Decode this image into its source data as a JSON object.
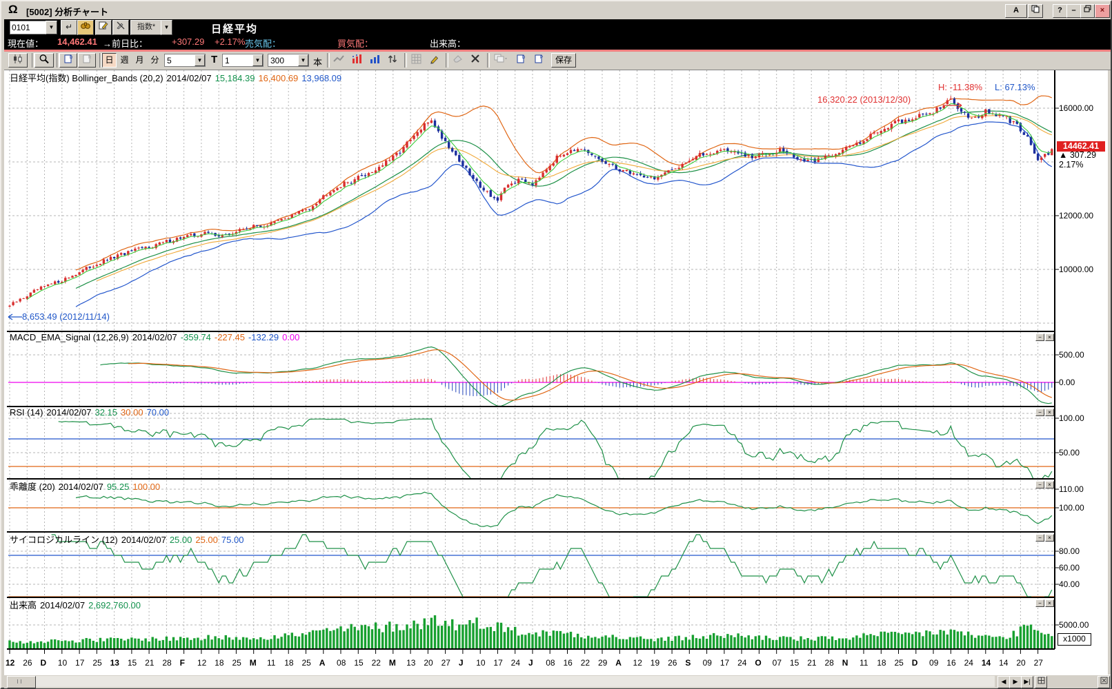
{
  "window": {
    "title": "[5002] 分析チャート",
    "logo": "Ω",
    "buttons": {
      "font": "A",
      "help": "?",
      "minimize": "–",
      "close": "×"
    }
  },
  "quote_bar": {
    "code": "0101",
    "category": "指数*",
    "name": "日経平均"
  },
  "price_bar": {
    "label_current": "現在値：",
    "current": "14,462.41",
    "label_change": "→前日比：",
    "change": "+307.29",
    "change_pct": "+2.17%",
    "label_ask": "売気配：",
    "label_bid": "買気配：",
    "label_volume": "出来高："
  },
  "toolbar": {
    "period_day": "日",
    "period_week": "週",
    "period_month": "月",
    "period_min": "分",
    "dd_min": "5",
    "t_label": "T",
    "dd_t": "1",
    "dd_bars": "300",
    "bars_unit": "本",
    "save": "保存"
  },
  "main_chart": {
    "title": "日経平均(指数) Bollinger_Bands (20,2)",
    "date": "2014/02/07",
    "sma": "15,184.39",
    "upper": "16,400.69",
    "lower": "13,968.09",
    "high_label": "H: -11.38%",
    "low_label": "L: 67.13%",
    "peak_label": "16,320.22 (2013/12/30)",
    "trough_label": "8,653.49 (2012/11/14)",
    "price_tag": "14462.41",
    "price_change": "▲ 307.29",
    "price_pct": "2.17%",
    "axis": [
      "16000.00",
      "12000.00",
      "10000.00"
    ]
  },
  "macd": {
    "title": "MACD_EMA_Signal (12,26,9)",
    "date": "2014/02/07",
    "v1": "-359.74",
    "v2": "-227.45",
    "v3": "-132.29",
    "v4": "0.00",
    "axis": [
      "500.00",
      "0.00"
    ]
  },
  "rsi": {
    "title": "RSI (14)",
    "date": "2014/02/07",
    "v1": "32.15",
    "v2": "30.00",
    "v3": "70.00",
    "axis": [
      "100.00",
      "50.00"
    ]
  },
  "kairi": {
    "title": "乖離度 (20)",
    "date": "2014/02/07",
    "v1": "95.25",
    "v2": "100.00",
    "axis": [
      "110.00",
      "100.00"
    ]
  },
  "psy": {
    "title": "サイコロジカルライン (12)",
    "date": "2014/02/07",
    "v1": "25.00",
    "v2": "25.00",
    "v3": "75.00",
    "axis": [
      "80.00",
      "60.00",
      "40.00"
    ]
  },
  "volume_panel": {
    "title": "出来高",
    "date": "2014/02/07",
    "value": "2,692,760.00",
    "axis": [
      "5000.00"
    ],
    "unit": "x1000"
  },
  "x_axis": {
    "labels": [
      "12",
      "26",
      "D",
      "10",
      "17",
      "25",
      "13",
      "15",
      "21",
      "28",
      "F",
      "12",
      "18",
      "25",
      "M",
      "11",
      "18",
      "25",
      "A",
      "08",
      "15",
      "22",
      "M",
      "13",
      "20",
      "27",
      "J",
      "10",
      "17",
      "24",
      "J",
      "08",
      "16",
      "22",
      "29",
      "A",
      "12",
      "19",
      "26",
      "S",
      "09",
      "17",
      "24",
      "O",
      "07",
      "15",
      "21",
      "28",
      "N",
      "11",
      "18",
      "25",
      "D",
      "09",
      "16",
      "24",
      "14",
      "14",
      "20",
      "27"
    ],
    "bold": [
      0,
      2,
      6,
      10,
      14,
      18,
      22,
      26,
      30,
      35,
      39,
      43,
      48,
      52,
      56
    ]
  },
  "colors": {
    "up_candle": "#d82f2f",
    "down_candle": "#1c2f9e",
    "sma": "#1d9047",
    "ema_fast": "#3bcc3b",
    "ema_mid": "#f0a838",
    "band_upper": "#e06614",
    "band_lower": "#2255cc",
    "zero_line": "#ee00ee",
    "hist_pos": "#e03030",
    "hist_neg": "#2244bb",
    "volume": "#18a030",
    "grid": "#b4b4b4",
    "quote_red": "#ff7878",
    "quote_cyan": "#6cc8ee"
  },
  "chart_data": {
    "type": "candlestick",
    "bars": 300,
    "x_tick_every_bars": 5,
    "main_axis_ticks": [
      16000,
      14000,
      12000,
      10000
    ],
    "macd_axis_ticks": [
      500,
      0
    ],
    "rsi_axis_ticks": [
      100,
      50
    ],
    "rsi_bands": [
      70,
      30
    ],
    "kairi_axis_ticks": [
      110,
      100
    ],
    "psy_axis_ticks": [
      80,
      60,
      40
    ],
    "psy_bands": [
      75,
      25
    ],
    "vol_axis_ticks": [
      5000
    ],
    "overlays": [
      "SMA20",
      "BB_upper_2sigma",
      "BB_lower_2sigma",
      "EMA5",
      "EMA25"
    ],
    "latest": {
      "close": 14462.41,
      "sma20": 15184.39,
      "bb_upper": 16400.69,
      "bb_lower": 13968.09,
      "macd": -359.74,
      "signal": -227.45,
      "histogram": -132.29,
      "rsi": 32.15,
      "kairi": 95.25,
      "psychological": 25.0,
      "volume_x1000": 2692.76
    },
    "price_anchors": [
      [
        0,
        8650
      ],
      [
        8,
        9250
      ],
      [
        16,
        9650
      ],
      [
        24,
        10150
      ],
      [
        32,
        10550
      ],
      [
        40,
        10850
      ],
      [
        48,
        11150
      ],
      [
        56,
        11350
      ],
      [
        62,
        11250
      ],
      [
        68,
        11550
      ],
      [
        74,
        11650
      ],
      [
        80,
        11950
      ],
      [
        86,
        12300
      ],
      [
        92,
        12950
      ],
      [
        98,
        13300
      ],
      [
        104,
        13650
      ],
      [
        110,
        14150
      ],
      [
        115,
        14800
      ],
      [
        119,
        15350
      ],
      [
        121,
        15600
      ],
      [
        123,
        15100
      ],
      [
        126,
        14600
      ],
      [
        129,
        14050
      ],
      [
        133,
        13350
      ],
      [
        136,
        13000
      ],
      [
        140,
        12550
      ],
      [
        143,
        13150
      ],
      [
        147,
        13350
      ],
      [
        150,
        13200
      ],
      [
        154,
        13800
      ],
      [
        158,
        14250
      ],
      [
        161,
        14500
      ],
      [
        165,
        14350
      ],
      [
        169,
        14100
      ],
      [
        173,
        13800
      ],
      [
        177,
        13650
      ],
      [
        181,
        13500
      ],
      [
        185,
        13400
      ],
      [
        189,
        13600
      ],
      [
        193,
        13950
      ],
      [
        197,
        14200
      ],
      [
        201,
        14350
      ],
      [
        205,
        14480
      ],
      [
        209,
        14300
      ],
      [
        213,
        14150
      ],
      [
        217,
        14350
      ],
      [
        221,
        14450
      ],
      [
        225,
        14200
      ],
      [
        229,
        13980
      ],
      [
        233,
        14150
      ],
      [
        237,
        14350
      ],
      [
        241,
        14550
      ],
      [
        245,
        14850
      ],
      [
        249,
        15150
      ],
      [
        253,
        15400
      ],
      [
        257,
        15550
      ],
      [
        261,
        15700
      ],
      [
        265,
        15900
      ],
      [
        268,
        16100
      ],
      [
        270,
        16300
      ],
      [
        272,
        16050
      ],
      [
        274,
        15800
      ],
      [
        277,
        15650
      ],
      [
        280,
        15850
      ],
      [
        283,
        15750
      ],
      [
        286,
        15600
      ],
      [
        289,
        15350
      ],
      [
        291,
        15100
      ],
      [
        293,
        14650
      ],
      [
        295,
        14050
      ],
      [
        297,
        14200
      ],
      [
        299,
        14460
      ]
    ],
    "volume_anchors": [
      [
        0,
        1450
      ],
      [
        15,
        1750
      ],
      [
        30,
        1950
      ],
      [
        45,
        2150
      ],
      [
        60,
        2350
      ],
      [
        75,
        2550
      ],
      [
        85,
        3100
      ],
      [
        92,
        3900
      ],
      [
        100,
        4300
      ],
      [
        108,
        4600
      ],
      [
        114,
        5000
      ],
      [
        119,
        5400
      ],
      [
        122,
        6200
      ],
      [
        126,
        5300
      ],
      [
        131,
        5000
      ],
      [
        136,
        5600
      ],
      [
        140,
        4700
      ],
      [
        146,
        3600
      ],
      [
        152,
        3200
      ],
      [
        158,
        3500
      ],
      [
        164,
        3000
      ],
      [
        170,
        2700
      ],
      [
        176,
        2350
      ],
      [
        182,
        2150
      ],
      [
        188,
        2000
      ],
      [
        194,
        2350
      ],
      [
        200,
        2650
      ],
      [
        206,
        2850
      ],
      [
        212,
        2600
      ],
      [
        218,
        2350
      ],
      [
        224,
        2200
      ],
      [
        230,
        2050
      ],
      [
        236,
        2250
      ],
      [
        242,
        2450
      ],
      [
        248,
        2800
      ],
      [
        254,
        3000
      ],
      [
        260,
        3200
      ],
      [
        266,
        3500
      ],
      [
        270,
        3700
      ],
      [
        274,
        3100
      ],
      [
        278,
        2700
      ],
      [
        282,
        2500
      ],
      [
        286,
        2450
      ],
      [
        290,
        3900
      ],
      [
        293,
        4300
      ],
      [
        296,
        3200
      ],
      [
        299,
        2693
      ]
    ]
  }
}
